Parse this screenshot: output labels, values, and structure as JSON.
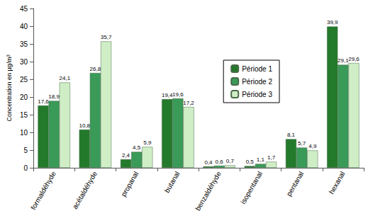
{
  "chart_data": {
    "type": "bar",
    "y_label": "Concentration en µg/m³",
    "categories": [
      "formaldéhyde",
      "acétaldéhyde",
      "propanal",
      "butanal",
      "benzaldéhyde",
      "isopentanal",
      "pentanal",
      "hexanal"
    ],
    "series": [
      {
        "name": "Période 1",
        "color": "#237a2b",
        "values": [
          17.6,
          10.8,
          2.4,
          19.4,
          0.4,
          0.5,
          8.1,
          39.9
        ],
        "value_labels": [
          "17,6",
          "10,8",
          "2,4",
          "19,4",
          "0,4",
          "0,5",
          "8,1",
          "39,9"
        ]
      },
      {
        "name": "Période 2",
        "color": "#3a9a58",
        "values": [
          18.9,
          26.8,
          4.5,
          19.6,
          0.6,
          1.1,
          5.7,
          29.1
        ],
        "value_labels": [
          "18,9",
          "26,8",
          "4,5",
          "19,6",
          "0,6",
          "1,1",
          "5,7",
          "29,1"
        ]
      },
      {
        "name": "Période 3",
        "color": "#cfeec6",
        "values": [
          24.1,
          35.7,
          5.9,
          17.2,
          0.7,
          1.7,
          4.9,
          29.6
        ],
        "value_labels": [
          "24,1",
          "35,7",
          "5,9",
          "17,2",
          "0,7",
          "1,7",
          "4,9",
          "29,6"
        ]
      }
    ],
    "ylim": [
      0,
      45
    ],
    "yticks": [
      0,
      5,
      10,
      15,
      20,
      25,
      30,
      35,
      40,
      45
    ],
    "grid": false,
    "legend": "upper right",
    "data_labels": true
  }
}
